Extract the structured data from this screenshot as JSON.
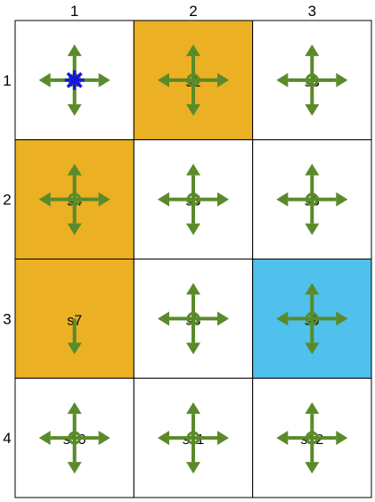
{
  "grid": {
    "rows": 4,
    "cols": 3,
    "col_labels": [
      "1",
      "2",
      "3"
    ],
    "row_labels": [
      "1",
      "2",
      "3",
      "4"
    ],
    "colors": {
      "wall": "#EBB024",
      "goal": "#4FC1EC",
      "empty": "#FFFFFF",
      "grid_line": "#000000",
      "arrow": "#5A8A2A",
      "agent": "#1515E0"
    },
    "cells": [
      {
        "row": 1,
        "col": 1,
        "state": "s1",
        "type": "empty",
        "arrows": [
          "up",
          "down",
          "left",
          "right"
        ],
        "agent": true
      },
      {
        "row": 1,
        "col": 2,
        "state": "s2",
        "type": "wall",
        "arrows": [
          "up",
          "down",
          "left",
          "right"
        ]
      },
      {
        "row": 1,
        "col": 3,
        "state": "s3",
        "type": "empty",
        "arrows": [
          "up",
          "down",
          "left",
          "right"
        ]
      },
      {
        "row": 2,
        "col": 1,
        "state": "s4",
        "type": "wall",
        "arrows": [
          "up",
          "down",
          "left",
          "right"
        ]
      },
      {
        "row": 2,
        "col": 2,
        "state": "s5",
        "type": "empty",
        "arrows": [
          "up",
          "down",
          "left",
          "right"
        ]
      },
      {
        "row": 2,
        "col": 3,
        "state": "s6",
        "type": "empty",
        "arrows": [
          "up",
          "down",
          "left",
          "right"
        ]
      },
      {
        "row": 3,
        "col": 1,
        "state": "s7",
        "type": "wall",
        "arrows": [
          "down"
        ]
      },
      {
        "row": 3,
        "col": 2,
        "state": "s8",
        "type": "empty",
        "arrows": [
          "up",
          "down",
          "left",
          "right"
        ]
      },
      {
        "row": 3,
        "col": 3,
        "state": "s9",
        "type": "goal",
        "arrows": [
          "up",
          "down",
          "left",
          "right"
        ]
      },
      {
        "row": 4,
        "col": 1,
        "state": "s10",
        "type": "empty",
        "arrows": [
          "up",
          "down",
          "left",
          "right"
        ]
      },
      {
        "row": 4,
        "col": 2,
        "state": "s11",
        "type": "empty",
        "arrows": [
          "up",
          "down",
          "left",
          "right"
        ]
      },
      {
        "row": 4,
        "col": 3,
        "state": "s12",
        "type": "empty",
        "arrows": [
          "up",
          "down",
          "left",
          "right"
        ]
      }
    ]
  }
}
